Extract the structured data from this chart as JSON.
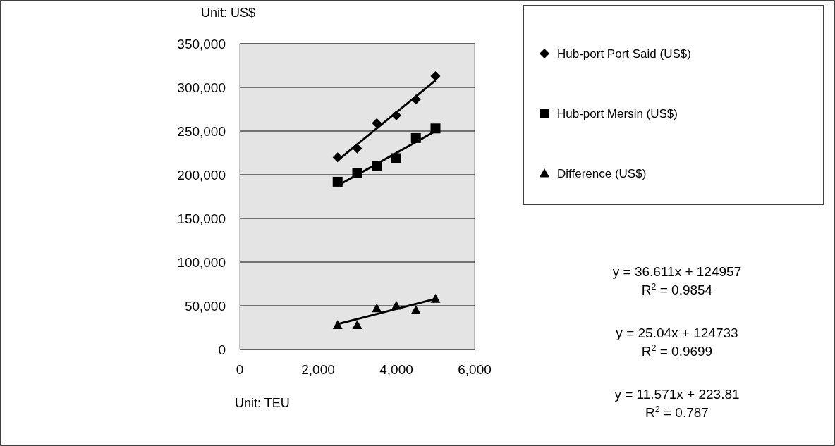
{
  "chart_data": {
    "type": "scatter",
    "xlabel": "Unit: TEU",
    "ylabel": "Unit: US$",
    "xlim": [
      0,
      6000
    ],
    "xticks": [
      {
        "value": 0,
        "label": "0"
      },
      {
        "value": 2000,
        "label": "2,000"
      },
      {
        "value": 4000,
        "label": "4,000"
      },
      {
        "value": 6000,
        "label": "6,000"
      }
    ],
    "ylim": [
      0,
      350000
    ],
    "yticks": [
      {
        "value": 0,
        "label": "0"
      },
      {
        "value": 50000,
        "label": "50,000"
      },
      {
        "value": 100000,
        "label": "100,000"
      },
      {
        "value": 150000,
        "label": "150,000"
      },
      {
        "value": 200000,
        "label": "200,000"
      },
      {
        "value": 250000,
        "label": "250,000"
      },
      {
        "value": 300000,
        "label": "300,000"
      },
      {
        "value": 350000,
        "label": "350,000"
      }
    ],
    "grid": "y",
    "legend": "top right",
    "series": [
      {
        "name": "Hub-port Port Said (US$)",
        "color": "#000000",
        "marker": "diamond",
        "x": [
          2500,
          3000,
          3500,
          4000,
          4500,
          5000
        ],
        "values": [
          220000,
          230000,
          259000,
          268000,
          286000,
          313000
        ]
      },
      {
        "name": "Hub-port Mersin (US$)",
        "color": "#000000",
        "marker": "square",
        "x": [
          2500,
          3000,
          3500,
          4000,
          4500,
          5000
        ],
        "values": [
          192000,
          202000,
          210000,
          219000,
          242000,
          253000
        ]
      },
      {
        "name": "Difference (US$)",
        "color": "#000000",
        "marker": "triangle",
        "x": [
          2500,
          3000,
          3500,
          4000,
          4500,
          5000
        ],
        "values": [
          28000,
          28000,
          47000,
          50000,
          45000,
          58000
        ]
      },
      {
        "type": "line",
        "color": "#000000",
        "x": [
          2500,
          5000
        ],
        "values": [
          216500,
          308000
        ]
      },
      {
        "type": "line",
        "color": "#000000",
        "x": [
          2500,
          5000
        ],
        "values": [
          187500,
          250000
        ]
      },
      {
        "type": "line",
        "color": "#000000",
        "x": [
          2500,
          5000
        ],
        "values": [
          29000,
          58000
        ]
      }
    ],
    "annotations": [
      "y = 36.611x + 124957\nR$^{2}$ = 0.9854",
      "y = 25.04x + 124733\nR$^{2}$ = 0.9699",
      "y = 11.571x + 223.81\nR$^{2}$ = 0.787"
    ]
  }
}
